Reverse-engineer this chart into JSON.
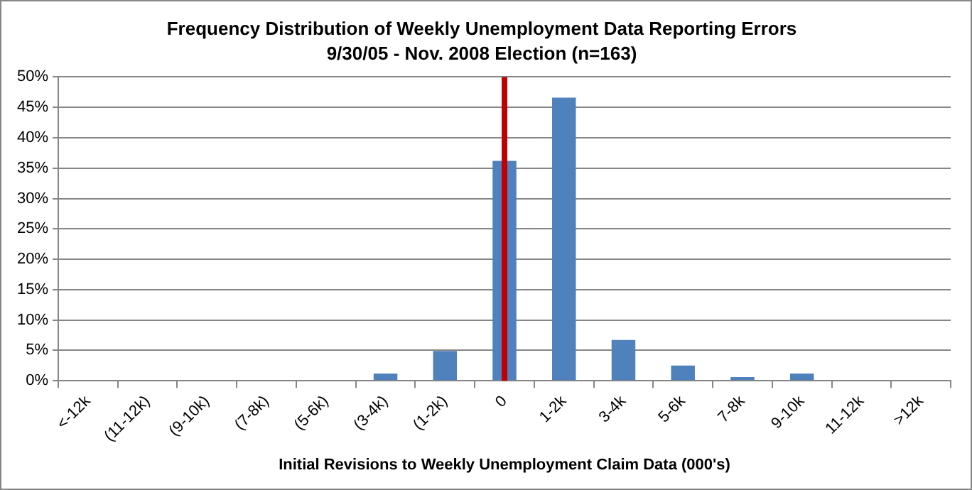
{
  "chart_data": {
    "type": "bar",
    "title": "Frequency Distribution of Weekly Unemployment Data Reporting Errors",
    "subtitle": "9/30/05 - Nov. 2008 Election (n=163)",
    "xlabel": "Initial Revisions to Weekly Unemployment Claim Data (000's)",
    "categories": [
      "<-12k",
      "(11-12k)",
      "(9-10k)",
      "(7-8k)",
      "(5-6k)",
      "(3-4k)",
      "(1-2k)",
      "0",
      "1-2k",
      "3-4k",
      "5-6k",
      "7-8k",
      "9-10k",
      "11-12k",
      ">12k"
    ],
    "values": [
      0,
      0,
      0,
      0,
      0,
      1.2,
      4.9,
      36.2,
      46.6,
      6.7,
      2.5,
      0.6,
      1.2,
      0,
      0
    ],
    "color": "#4f81bd",
    "ylim": [
      0,
      50
    ],
    "yticks": [
      {
        "value": 0,
        "label": "0%"
      },
      {
        "value": 5,
        "label": "5%"
      },
      {
        "value": 10,
        "label": "10%"
      },
      {
        "value": 15,
        "label": "15%"
      },
      {
        "value": 20,
        "label": "20%"
      },
      {
        "value": 25,
        "label": "25%"
      },
      {
        "value": 30,
        "label": "30%"
      },
      {
        "value": 35,
        "label": "35%"
      },
      {
        "value": 40,
        "label": "40%"
      },
      {
        "value": 45,
        "label": "45%"
      },
      {
        "value": 50,
        "label": "50%"
      }
    ],
    "grid": "y",
    "legend": false,
    "ref_lines": [
      {
        "axis": "x",
        "value": "0",
        "color": "#c00000"
      }
    ]
  }
}
